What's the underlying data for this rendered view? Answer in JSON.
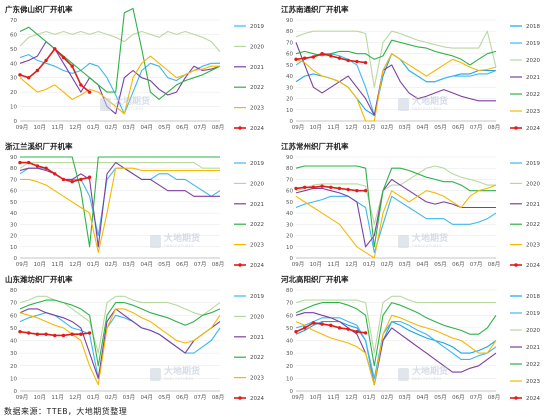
{
  "source_note": "数据来源：TTEB，大地期货整理",
  "watermark": {
    "cn": "大地期货",
    "en": "DADI FUTURES"
  },
  "series_colors": {
    "2018": "#1aa3e8",
    "2019": "#3db7ef",
    "2020": "#b9d8a0",
    "2021": "#7b3fa0",
    "2022": "#2fb04a",
    "2023": "#f5b800",
    "2024": "#e21b1b"
  },
  "chart_data": [
    {
      "type": "line",
      "title": "广东佛山织厂开机率",
      "ylim": [
        0,
        70
      ],
      "yticks": [
        0,
        10,
        20,
        30,
        40,
        50,
        60,
        70
      ],
      "xticks": [
        "09月",
        "10月",
        "11月",
        "12月",
        "01月",
        "02月",
        "03月",
        "04月",
        "05月",
        "06月",
        "07月",
        "08月"
      ],
      "series": [
        {
          "name": "2019",
          "values": [
            44,
            46,
            42,
            40,
            38,
            35,
            33,
            35,
            40,
            38,
            30,
            18,
            5,
            20,
            35,
            40,
            38,
            30,
            28,
            32,
            35,
            38,
            40,
            40
          ]
        },
        {
          "name": "2020",
          "values": [
            52,
            58,
            60,
            62,
            60,
            62,
            60,
            62,
            60,
            62,
            60,
            58,
            55,
            60,
            62,
            60,
            58,
            62,
            60,
            62,
            60,
            58,
            55,
            48
          ]
        },
        {
          "name": "2021",
          "values": [
            40,
            42,
            45,
            55,
            50,
            40,
            30,
            20,
            30,
            25,
            10,
            5,
            30,
            35,
            30,
            28,
            22,
            18,
            20,
            30,
            38,
            35,
            36,
            38
          ]
        },
        {
          "name": "2022",
          "values": [
            62,
            65,
            60,
            55,
            50,
            45,
            40,
            35,
            30,
            25,
            20,
            20,
            75,
            78,
            50,
            20,
            15,
            20,
            25,
            28,
            30,
            32,
            35,
            38
          ]
        },
        {
          "name": "2023",
          "values": [
            30,
            25,
            20,
            22,
            25,
            20,
            15,
            18,
            22,
            20,
            15,
            10,
            5,
            30,
            40,
            45,
            40,
            35,
            30,
            32,
            35,
            36,
            38,
            38
          ]
        },
        {
          "name": "2024",
          "values": [
            32,
            30,
            35,
            42,
            50,
            44,
            38,
            25,
            20
          ]
        }
      ]
    },
    {
      "type": "line",
      "title": "江苏南通织厂开机率",
      "ylim": [
        0,
        90
      ],
      "yticks": [
        0,
        10,
        20,
        30,
        40,
        50,
        60,
        70,
        80,
        90
      ],
      "xticks": [
        "09月",
        "10月",
        "11月",
        "12月",
        "01月",
        "02月",
        "03月",
        "04月",
        "05月",
        "06月",
        "07月",
        "08月"
      ],
      "series": [
        {
          "name": "2018",
          "values": [
            35,
            40,
            42,
            40,
            38,
            35,
            30,
            20,
            10,
            5,
            40,
            60,
            55,
            45,
            40,
            35,
            35,
            38,
            40,
            42,
            42,
            45,
            45,
            45
          ]
        },
        {
          "name": "2019",
          "values": [
            50,
            55,
            58,
            60,
            60,
            58,
            55,
            50,
            30,
            5,
            45,
            60,
            55,
            45,
            40,
            35,
            35,
            38,
            40,
            40,
            40,
            42,
            42,
            45
          ]
        },
        {
          "name": "2020",
          "values": [
            75,
            78,
            80,
            80,
            80,
            80,
            80,
            80,
            78,
            30,
            70,
            80,
            78,
            75,
            72,
            70,
            68,
            66,
            65,
            65,
            65,
            65,
            80,
            48
          ]
        },
        {
          "name": "2021",
          "values": [
            70,
            50,
            30,
            25,
            30,
            35,
            40,
            30,
            20,
            5,
            45,
            50,
            35,
            25,
            20,
            22,
            25,
            28,
            25,
            22,
            20,
            18,
            18,
            18
          ]
        },
        {
          "name": "2022",
          "values": [
            60,
            62,
            60,
            58,
            60,
            62,
            62,
            60,
            60,
            55,
            58,
            72,
            70,
            68,
            66,
            65,
            62,
            60,
            58,
            55,
            50,
            55,
            60,
            62
          ]
        },
        {
          "name": "2023",
          "values": [
            55,
            52,
            45,
            40,
            38,
            35,
            30,
            20,
            0,
            0,
            45,
            60,
            55,
            50,
            45,
            40,
            45,
            50,
            55,
            52,
            48,
            45,
            46,
            48
          ]
        },
        {
          "name": "2024",
          "values": [
            55,
            56,
            57,
            60,
            58,
            56,
            54,
            53,
            52
          ]
        }
      ]
    },
    {
      "type": "line",
      "title": "浙江兰溪织厂开机率",
      "ylim": [
        0,
        90
      ],
      "yticks": [
        0,
        10,
        20,
        30,
        40,
        50,
        60,
        70,
        80,
        90
      ],
      "xticks": [
        "09月",
        "10月",
        "11月",
        "12月",
        "01月",
        "02月",
        "03月",
        "04月",
        "05月",
        "06月",
        "07月",
        "08月"
      ],
      "series": [
        {
          "name": "2019",
          "values": [
            75,
            80,
            80,
            80,
            75,
            70,
            70,
            70,
            55,
            20,
            70,
            80,
            80,
            75,
            70,
            70,
            75,
            75,
            70,
            70,
            65,
            60,
            55,
            60
          ]
        },
        {
          "name": "2020",
          "values": [
            80,
            85,
            85,
            85,
            85,
            85,
            85,
            85,
            85,
            85,
            85,
            85,
            85,
            85,
            85,
            85,
            85,
            85,
            85,
            85,
            85,
            80,
            80,
            80
          ]
        },
        {
          "name": "2021",
          "values": [
            78,
            80,
            80,
            78,
            75,
            70,
            70,
            75,
            70,
            10,
            75,
            85,
            80,
            75,
            70,
            70,
            65,
            60,
            60,
            60,
            55,
            55,
            55,
            55
          ]
        },
        {
          "name": "2022",
          "values": [
            90,
            90,
            90,
            90,
            90,
            90,
            90,
            60,
            10,
            90,
            90,
            90,
            90,
            90,
            90,
            90,
            90,
            90,
            90,
            90,
            90,
            90,
            90,
            90
          ]
        },
        {
          "name": "2023",
          "values": [
            70,
            70,
            68,
            65,
            60,
            55,
            50,
            45,
            40,
            5,
            40,
            80,
            80,
            80,
            78,
            78,
            78,
            78,
            78,
            78,
            78,
            78,
            78,
            78
          ]
        },
        {
          "name": "2024",
          "values": [
            85,
            85,
            82,
            80,
            75,
            70,
            68,
            70,
            72
          ]
        }
      ]
    },
    {
      "type": "line",
      "title": "江苏常州织厂开机率",
      "ylim": [
        0,
        90
      ],
      "yticks": [
        0,
        10,
        20,
        30,
        40,
        50,
        60,
        70,
        80,
        90
      ],
      "xticks": [
        "09月",
        "10月",
        "11月",
        "12月",
        "01月",
        "02月",
        "03月",
        "04月",
        "05月",
        "06月",
        "07月",
        "08月"
      ],
      "series": [
        {
          "name": "2019",
          "values": [
            45,
            48,
            50,
            52,
            55,
            55,
            55,
            50,
            45,
            5,
            30,
            55,
            50,
            45,
            40,
            35,
            35,
            35,
            30,
            30,
            30,
            32,
            35,
            40
          ]
        },
        {
          "name": "2020",
          "values": [
            60,
            62,
            65,
            66,
            66,
            66,
            66,
            66,
            64,
            30,
            60,
            65,
            65,
            70,
            75,
            80,
            82,
            80,
            75,
            72,
            70,
            68,
            65,
            65
          ]
        },
        {
          "name": "2021",
          "values": [
            58,
            60,
            62,
            62,
            60,
            58,
            55,
            50,
            10,
            20,
            60,
            70,
            65,
            60,
            55,
            50,
            48,
            50,
            48,
            45,
            45,
            45,
            45,
            45
          ]
        },
        {
          "name": "2022",
          "values": [
            80,
            82,
            82,
            82,
            82,
            82,
            82,
            82,
            80,
            10,
            60,
            80,
            80,
            78,
            75,
            72,
            70,
            68,
            68,
            65,
            60,
            60,
            60,
            60
          ]
        },
        {
          "name": "2023",
          "values": [
            55,
            50,
            45,
            40,
            35,
            30,
            20,
            10,
            5,
            0,
            40,
            60,
            55,
            50,
            55,
            60,
            58,
            55,
            50,
            45,
            55,
            60,
            62,
            65
          ]
        },
        {
          "name": "2024",
          "values": [
            62,
            63,
            63,
            64,
            63,
            62,
            61,
            60,
            60
          ]
        }
      ]
    },
    {
      "type": "line",
      "title": "山东潍坊织厂开机率",
      "ylim": [
        0,
        80
      ],
      "yticks": [
        0,
        10,
        20,
        30,
        40,
        50,
        60,
        70,
        80
      ],
      "xticks": [
        "09月",
        "10月",
        "11月",
        "12月",
        "01月",
        "02月",
        "03月",
        "04月",
        "05月",
        "06月",
        "07月",
        "08月"
      ],
      "series": [
        {
          "name": "2019",
          "values": [
            55,
            58,
            60,
            62,
            60,
            55,
            50,
            48,
            45,
            10,
            50,
            60,
            58,
            55,
            50,
            48,
            45,
            40,
            35,
            30,
            30,
            35,
            40,
            50
          ]
        },
        {
          "name": "2020",
          "values": [
            70,
            72,
            75,
            75,
            72,
            70,
            65,
            60,
            55,
            30,
            70,
            75,
            75,
            72,
            70,
            70,
            70,
            70,
            68,
            65,
            62,
            60,
            65,
            70
          ]
        },
        {
          "name": "2021",
          "values": [
            62,
            65,
            65,
            62,
            60,
            58,
            55,
            50,
            30,
            10,
            55,
            65,
            60,
            55,
            50,
            48,
            45,
            40,
            35,
            30,
            40,
            45,
            50,
            55
          ]
        },
        {
          "name": "2022",
          "values": [
            65,
            68,
            70,
            72,
            72,
            70,
            68,
            65,
            60,
            20,
            60,
            70,
            70,
            68,
            65,
            62,
            60,
            58,
            55,
            52,
            55,
            60,
            62,
            65
          ]
        },
        {
          "name": "2023",
          "values": [
            62,
            60,
            58,
            55,
            52,
            50,
            45,
            40,
            20,
            5,
            50,
            65,
            65,
            62,
            58,
            55,
            50,
            45,
            40,
            38,
            40,
            45,
            50,
            60
          ]
        },
        {
          "name": "2024",
          "values": [
            47,
            46,
            45,
            45,
            44,
            44,
            45,
            45,
            46
          ]
        }
      ]
    },
    {
      "type": "line",
      "title": "河北高阳织厂开机率",
      "ylim": [
        0,
        80
      ],
      "yticks": [
        0,
        10,
        20,
        30,
        40,
        50,
        60,
        70,
        80
      ],
      "xticks": [
        "09月",
        "10月",
        "11月",
        "12月",
        "01月",
        "02月",
        "03月",
        "04月",
        "05月",
        "06月",
        "07月",
        "08月"
      ],
      "series": [
        {
          "name": "2018",
          "values": [
            45,
            48,
            52,
            55,
            55,
            55,
            52,
            50,
            40,
            5,
            40,
            55,
            52,
            48,
            45,
            42,
            40,
            38,
            35,
            30,
            30,
            32,
            35,
            40
          ]
        },
        {
          "name": "2019",
          "values": [
            50,
            52,
            55,
            58,
            58,
            58,
            55,
            52,
            40,
            10,
            45,
            55,
            55,
            52,
            48,
            45,
            40,
            35,
            30,
            25,
            25,
            28,
            30,
            35
          ]
        },
        {
          "name": "2020",
          "values": [
            70,
            72,
            72,
            72,
            72,
            72,
            72,
            72,
            70,
            30,
            70,
            75,
            75,
            72,
            70,
            70,
            70,
            70,
            70,
            70,
            70,
            70,
            70,
            70
          ]
        },
        {
          "name": "2021",
          "values": [
            60,
            62,
            62,
            60,
            58,
            55,
            50,
            45,
            30,
            5,
            40,
            50,
            45,
            40,
            35,
            30,
            25,
            20,
            15,
            15,
            18,
            20,
            25,
            30
          ]
        },
        {
          "name": "2022",
          "values": [
            62,
            65,
            68,
            70,
            70,
            70,
            68,
            65,
            60,
            20,
            60,
            70,
            68,
            65,
            62,
            58,
            55,
            52,
            50,
            48,
            45,
            45,
            50,
            60
          ]
        },
        {
          "name": "2023",
          "values": [
            55,
            52,
            48,
            45,
            42,
            40,
            38,
            35,
            30,
            5,
            45,
            60,
            58,
            55,
            52,
            50,
            48,
            45,
            42,
            40,
            35,
            30,
            30,
            40
          ]
        },
        {
          "name": "2024",
          "values": [
            47,
            50,
            54,
            53,
            52,
            50,
            49,
            47,
            46
          ]
        }
      ]
    }
  ]
}
